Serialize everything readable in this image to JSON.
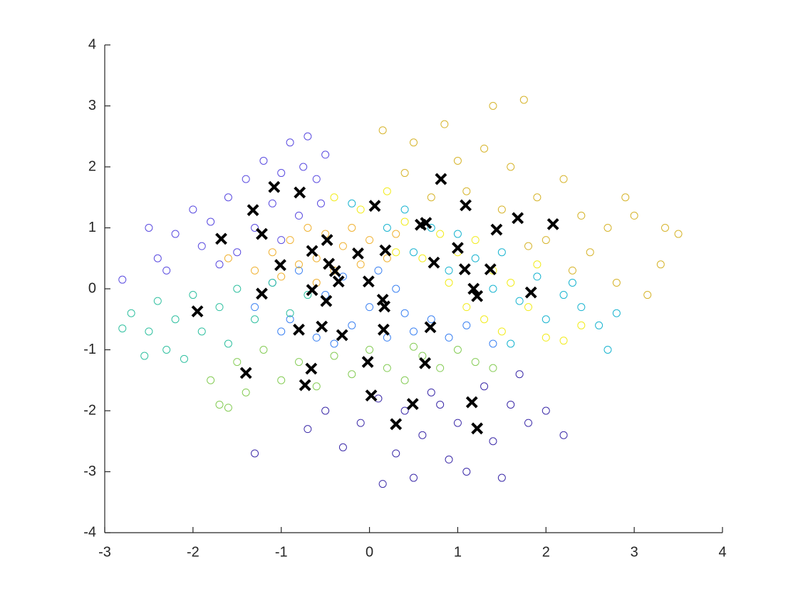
{
  "chart_data": {
    "type": "scatter",
    "xlim": [
      -3,
      4
    ],
    "ylim": [
      -4,
      4
    ],
    "xticks": [
      -3,
      -2,
      -1,
      0,
      1,
      2,
      3,
      4
    ],
    "yticks": [
      -4,
      -3,
      -2,
      -1,
      0,
      1,
      2,
      3,
      4
    ],
    "series": [
      {
        "color": "#5a4be0",
        "marker": "o",
        "x": [
          -2.5,
          -2.4,
          -2.2,
          -2.0,
          -1.9,
          -1.8,
          -1.6,
          -1.5,
          -1.4,
          -1.3,
          -1.2,
          -1.1,
          -1.0,
          -0.9,
          -0.8,
          -0.7,
          -0.6,
          -0.5,
          -0.55,
          -2.8,
          -2.3,
          -1.7,
          -1.0,
          -0.75
        ],
        "y": [
          1.0,
          0.5,
          0.9,
          1.3,
          0.7,
          1.1,
          1.5,
          0.6,
          1.8,
          1.0,
          2.1,
          1.4,
          1.9,
          2.4,
          1.2,
          2.5,
          1.8,
          2.2,
          1.4,
          0.15,
          0.3,
          0.4,
          0.8,
          2.0
        ]
      },
      {
        "color": "#3b2aa8",
        "marker": "o",
        "x": [
          -0.7,
          -0.5,
          -0.3,
          -0.1,
          0.1,
          0.15,
          0.3,
          0.4,
          0.5,
          0.6,
          0.8,
          0.9,
          1.0,
          1.1,
          1.3,
          1.4,
          1.5,
          1.6,
          1.8,
          2.0,
          2.2,
          -1.3,
          1.7,
          0.7
        ],
        "y": [
          -2.3,
          -2.0,
          -2.6,
          -2.2,
          -1.8,
          -3.2,
          -2.7,
          -2.0,
          -3.1,
          -2.4,
          -1.9,
          -2.8,
          -2.2,
          -3.0,
          -1.6,
          -2.5,
          -3.1,
          -1.9,
          -2.2,
          -2.0,
          -2.4,
          -2.7,
          -1.4,
          -1.7
        ]
      },
      {
        "color": "#3c82f2",
        "marker": "o",
        "x": [
          -1.3,
          -1.1,
          -0.9,
          -0.8,
          -0.6,
          -0.5,
          -0.3,
          -0.2,
          0.0,
          0.1,
          0.2,
          0.4,
          0.5,
          0.7,
          0.9,
          1.1,
          1.4,
          -0.4,
          0.3,
          -1.0
        ],
        "y": [
          -0.3,
          0.1,
          -0.5,
          0.3,
          -0.8,
          -0.1,
          0.2,
          -0.6,
          -0.3,
          0.3,
          -0.8,
          -0.4,
          -0.7,
          -0.5,
          -0.8,
          -0.6,
          -0.9,
          -0.9,
          0.0,
          -0.7
        ]
      },
      {
        "color": "#30c0a0",
        "marker": "o",
        "x": [
          -2.8,
          -2.7,
          -2.5,
          -2.4,
          -2.3,
          -2.2,
          -2.0,
          -1.9,
          -1.7,
          -1.6,
          -1.5,
          -1.3,
          -1.1,
          -0.9,
          -0.7,
          -2.55,
          -2.1
        ],
        "y": [
          -0.65,
          -0.4,
          -0.7,
          -0.2,
          -1.0,
          -0.5,
          -0.1,
          -0.7,
          -0.3,
          -0.9,
          0.0,
          -0.5,
          0.1,
          -0.4,
          -0.1,
          -1.1,
          -1.15
        ]
      },
      {
        "color": "#85cc55",
        "marker": "o",
        "x": [
          -1.8,
          -1.7,
          -1.5,
          -1.4,
          -1.2,
          -1.0,
          -0.8,
          -0.6,
          -0.4,
          -0.2,
          0.0,
          0.2,
          0.4,
          0.6,
          0.8,
          1.0,
          1.2,
          1.4,
          -1.6,
          0.5
        ],
        "y": [
          -1.5,
          -1.9,
          -1.2,
          -1.7,
          -1.0,
          -1.5,
          -1.2,
          -1.6,
          -1.1,
          -1.4,
          -1.0,
          -1.3,
          -1.5,
          -1.1,
          -1.3,
          -1.0,
          -1.2,
          -1.3,
          -1.95,
          -0.95
        ]
      },
      {
        "color": "#f0b232",
        "marker": "o",
        "x": [
          -1.3,
          -1.1,
          -1.0,
          -0.9,
          -0.8,
          -0.7,
          -0.6,
          -0.5,
          -0.4,
          -0.3,
          -0.2,
          -0.1,
          0.0,
          0.2,
          -0.6,
          -1.6,
          0.3
        ],
        "y": [
          0.3,
          0.6,
          0.2,
          0.8,
          0.4,
          1.0,
          0.5,
          0.9,
          0.3,
          0.7,
          1.0,
          0.4,
          0.8,
          0.5,
          0.1,
          0.5,
          0.9
        ]
      },
      {
        "color": "#d6b42b",
        "marker": "o",
        "x": [
          0.15,
          0.4,
          0.5,
          0.7,
          0.85,
          1.0,
          1.1,
          1.3,
          1.4,
          1.5,
          1.6,
          1.75,
          1.9,
          2.0,
          2.2,
          2.4,
          2.5,
          2.7,
          2.9,
          3.0,
          3.15,
          3.3,
          3.35,
          3.5,
          2.8,
          2.3,
          1.8
        ],
        "y": [
          2.6,
          1.9,
          2.4,
          1.5,
          2.7,
          2.1,
          1.6,
          2.3,
          3.0,
          1.3,
          2.0,
          3.1,
          1.5,
          0.8,
          1.8,
          1.2,
          0.6,
          1.0,
          1.5,
          1.2,
          -0.1,
          0.4,
          1.0,
          0.9,
          0.1,
          0.3,
          0.7
        ]
      },
      {
        "color": "#f2ec1c",
        "marker": "o",
        "x": [
          -0.4,
          -0.1,
          0.2,
          0.4,
          0.6,
          0.8,
          0.9,
          1.0,
          1.1,
          1.2,
          1.3,
          1.4,
          1.5,
          1.6,
          1.8,
          2.0,
          2.2,
          2.4,
          1.9,
          0.3
        ],
        "y": [
          1.5,
          1.3,
          1.6,
          1.1,
          0.5,
          0.9,
          0.1,
          0.6,
          -0.3,
          0.8,
          -0.5,
          0.3,
          -0.7,
          0.1,
          -0.3,
          -0.8,
          -0.85,
          -0.6,
          0.4,
          0.6
        ]
      },
      {
        "color": "#19b4d0",
        "marker": "o",
        "x": [
          -0.2,
          0.2,
          0.4,
          0.5,
          0.7,
          0.9,
          1.0,
          1.2,
          1.4,
          1.5,
          1.7,
          1.9,
          2.0,
          2.2,
          2.4,
          2.6,
          2.7,
          2.8,
          2.3,
          1.6
        ],
        "y": [
          1.4,
          1.0,
          1.3,
          0.6,
          1.0,
          0.3,
          0.9,
          0.5,
          0.0,
          0.6,
          -0.2,
          0.2,
          -0.5,
          -0.1,
          -0.3,
          -0.6,
          -1.0,
          -0.4,
          0.1,
          -0.9
        ]
      },
      {
        "color": "#000000",
        "marker": "x",
        "x": [
          -1.95,
          -1.68,
          -1.32,
          -1.22,
          -1.08,
          -0.79,
          -1.01,
          -1.22,
          -1.4,
          -0.73,
          -0.66,
          -0.8,
          -0.65,
          -0.65,
          -0.48,
          -0.46,
          -0.39,
          -0.35,
          -0.49,
          -0.54,
          -0.31,
          -0.13,
          -0.01,
          0.06,
          0.18,
          0.15,
          0.17,
          0.16,
          -0.02,
          0.02,
          0.3,
          0.49,
          0.63,
          0.69,
          0.73,
          0.58,
          0.64,
          0.81,
          1.0,
          1.09,
          1.08,
          1.18,
          1.22,
          1.37,
          1.44,
          1.68,
          1.16,
          1.22,
          1.83,
          2.08
        ],
        "y": [
          -0.37,
          0.82,
          1.29,
          0.9,
          1.67,
          1.58,
          0.39,
          -0.08,
          -1.38,
          -1.58,
          -1.31,
          -0.67,
          -0.02,
          0.62,
          0.8,
          0.41,
          0.29,
          0.12,
          -0.2,
          -0.62,
          -0.76,
          0.58,
          0.12,
          1.36,
          0.63,
          -0.18,
          -0.29,
          -0.67,
          -1.2,
          -1.75,
          -2.22,
          -1.89,
          -1.22,
          -0.63,
          0.43,
          1.05,
          1.08,
          1.8,
          0.67,
          1.37,
          0.32,
          0.0,
          -0.12,
          0.32,
          0.97,
          1.16,
          -1.86,
          -2.29,
          -0.06,
          1.06
        ]
      }
    ]
  }
}
